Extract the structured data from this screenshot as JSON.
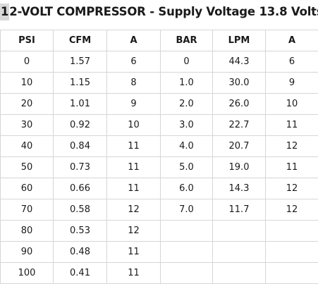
{
  "title": {
    "lead": "1",
    "rest": "2-VOLT COMPRESSOR - Supply Voltage 13.8 Volts"
  },
  "table": {
    "headers": [
      "PSI",
      "CFM",
      "A",
      "BAR",
      "LPM",
      "A"
    ],
    "rows": [
      [
        "0",
        "1.57",
        "6",
        "0",
        "44.3",
        "6"
      ],
      [
        "10",
        "1.15",
        "8",
        "1.0",
        "30.0",
        "9"
      ],
      [
        "20",
        "1.01",
        "9",
        "2.0",
        "26.0",
        "10"
      ],
      [
        "30",
        "0.92",
        "10",
        "3.0",
        "22.7",
        "11"
      ],
      [
        "40",
        "0.84",
        "11",
        "4.0",
        "20.7",
        "12"
      ],
      [
        "50",
        "0.73",
        "11",
        "5.0",
        "19.0",
        "11"
      ],
      [
        "60",
        "0.66",
        "11",
        "6.0",
        "14.3",
        "12"
      ],
      [
        "70",
        "0.58",
        "12",
        "7.0",
        "11.7",
        "12"
      ],
      [
        "80",
        "0.53",
        "12",
        "",
        "",
        ""
      ],
      [
        "90",
        "0.48",
        "11",
        "",
        "",
        ""
      ],
      [
        "100",
        "0.41",
        "11",
        "",
        "",
        ""
      ]
    ]
  }
}
